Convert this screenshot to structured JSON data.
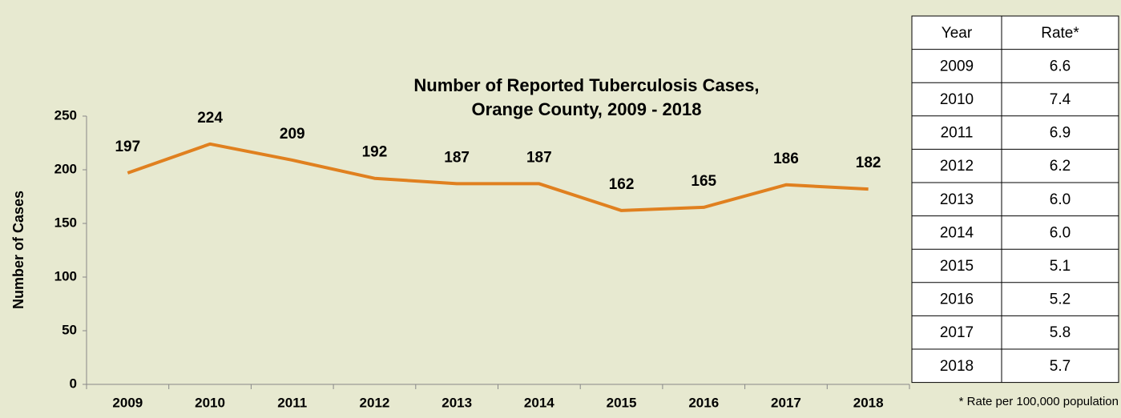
{
  "chart_data": {
    "type": "line",
    "title": [
      "Number of Reported Tuberculosis Cases,",
      "Orange County, 2009 - 2018"
    ],
    "y_label": "Number of Cases",
    "categories": [
      "2009",
      "2010",
      "2011",
      "2012",
      "2013",
      "2014",
      "2015",
      "2016",
      "2017",
      "2018"
    ],
    "values": [
      197,
      224,
      209,
      192,
      187,
      187,
      162,
      165,
      186,
      182
    ],
    "color": "#e0801f",
    "ylim": [
      0,
      250
    ],
    "yticks": [
      0,
      50,
      100,
      150,
      200,
      250
    ],
    "grid": false
  },
  "table": {
    "header": [
      "Year",
      "Rate*"
    ],
    "rows": [
      [
        "2009",
        "6.6"
      ],
      [
        "2010",
        "7.4"
      ],
      [
        "2011",
        "6.9"
      ],
      [
        "2012",
        "6.2"
      ],
      [
        "2013",
        "6.0"
      ],
      [
        "2014",
        "6.0"
      ],
      [
        "2015",
        "5.1"
      ],
      [
        "2016",
        "5.2"
      ],
      [
        "2017",
        "5.8"
      ],
      [
        "2018",
        "5.7"
      ]
    ],
    "footnote": "* Rate per 100,000 population"
  }
}
